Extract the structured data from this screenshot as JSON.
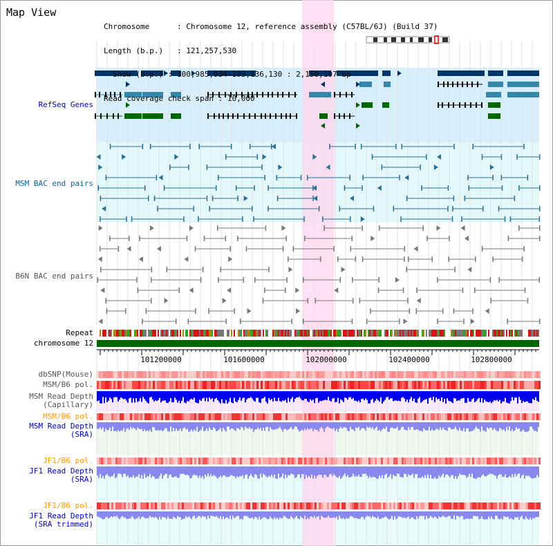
{
  "view_title": "Map View",
  "info": {
    "chromosome_key": "Chromosome",
    "chromosome_value": "Chromosome 12, reference assembly (C57BL/6J) (Build 37)",
    "length_key": "Length (b.p.)",
    "length_value": "121,257,530",
    "show_key": "Show (b.p.)",
    "show_value": "100,985,934-103,136,130 : 2,150,197 bp",
    "coverage_key": "Read coverage check span",
    "coverage_value": "10,000"
  },
  "tracks": {
    "refseq": "RefSeq Genes",
    "msm_bac": "MSM BAC end pairs",
    "b6n_bac": "B6N BAC end pairs",
    "repeat": "Repeat",
    "chromosome": "chromosome 12",
    "dbsnp": "dbSNP(Mouse)",
    "msm_b6_pol_1": "MSM/B6 pol.",
    "msm_depth_cap": "MSM Read Depth\n(Capillary)",
    "msm_b6_pol_2": "MSM/B6 pol.",
    "msm_depth_sra": "MSM Read Depth\n(SRA)",
    "jf1_b6_pol_1": "JF1/B6 pol.",
    "jf1_depth_sra": "JF1 Read Depth\n(SRA)",
    "jf1_b6_pol_2": "JF1/B6 pol.",
    "jf1_depth_trim": "JF1 Read Depth\n(SRA trimmed)"
  },
  "axis_ticks": [
    "101200000",
    "101600000",
    "102000000",
    "102400000",
    "102800000"
  ],
  "colors": {
    "highlight": "#ffd6ee",
    "refseq_bg": "#d6effa",
    "bac_bg": "#e2f8fa",
    "dark_gene": "#003366",
    "mid_gene": "#3388aa",
    "green_gene": "#006600",
    "chromosome_bar": "#006600",
    "depth_capillary": "#0000ee",
    "depth_sra": "#8888ee"
  }
}
